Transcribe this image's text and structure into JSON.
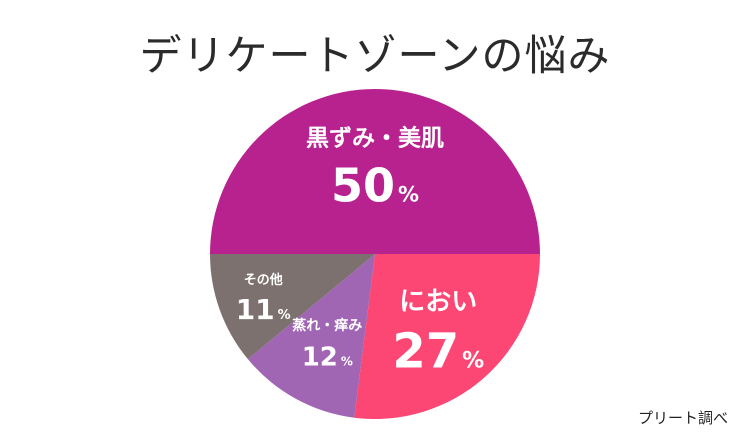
{
  "chart_data": {
    "type": "pie",
    "title": "デリケートゾーンの悩み",
    "unit": "%",
    "slices": [
      {
        "label": "黒ずみ・美肌",
        "value": 50,
        "color": "#b8228f"
      },
      {
        "label": "におい",
        "value": 27,
        "color": "#fc4774"
      },
      {
        "label": "蒸れ・痒み",
        "value": 12,
        "color": "#a066b4"
      },
      {
        "label": "その他",
        "value": 11,
        "color": "#7c716e"
      }
    ],
    "source": "プリート調べ"
  }
}
